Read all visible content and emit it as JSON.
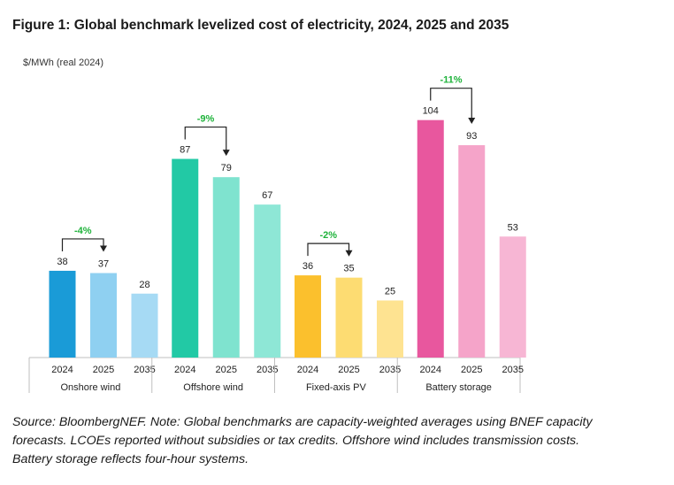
{
  "figure": {
    "title": "Figure 1: Global benchmark levelized cost of electricity, 2024, 2025 and 2035",
    "source_lines": [
      "Source: BloombergNEF. Note: Global benchmarks are capacity-weighted averages using BNEF capacity",
      "forecasts. LCOEs reported without subsidies or tax credits. Offshore wind includes transmission costs.",
      "Battery storage reflects four-hour systems."
    ]
  },
  "chart_data": {
    "type": "bar",
    "ylabel": "$/MWh (real 2024)",
    "ylim": [
      0,
      110
    ],
    "grid": false,
    "groups": [
      {
        "name": "Onshore wind",
        "years": [
          "2024",
          "2025",
          "2035"
        ],
        "values": [
          38,
          37,
          28
        ],
        "colors": [
          "#1a9bd7",
          "#8fd0f1",
          "#a6daf4"
        ],
        "change_label": "-4%"
      },
      {
        "name": "Offshore wind",
        "years": [
          "2024",
          "2025",
          "2035"
        ],
        "values": [
          87,
          79,
          67
        ],
        "colors": [
          "#22c9a5",
          "#7fe3cf",
          "#8ee7d6"
        ],
        "change_label": "-9%"
      },
      {
        "name": "Fixed-axis PV",
        "years": [
          "2024",
          "2025",
          "2035"
        ],
        "values": [
          36,
          35,
          25
        ],
        "colors": [
          "#fbc02d",
          "#fddc72",
          "#fee391"
        ],
        "change_label": "-2%"
      },
      {
        "name": "Battery storage",
        "years": [
          "2024",
          "2025",
          "2035"
        ],
        "values": [
          104,
          93,
          53
        ],
        "colors": [
          "#e8579e",
          "#f5a4c9",
          "#f7b6d4"
        ],
        "change_label": "-11%"
      }
    ],
    "change_label_color": "#1fb33b"
  }
}
